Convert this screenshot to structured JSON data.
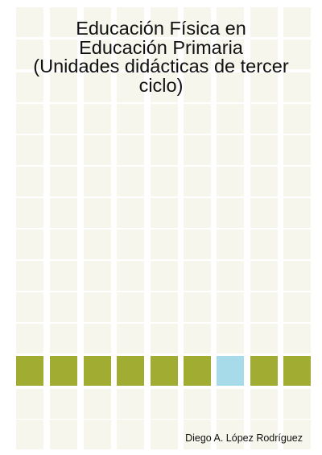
{
  "book": {
    "title_lines": [
      "Educación Física en",
      "Educación Primaria",
      "(Unidades didácticas de tercer",
      "ciclo)"
    ],
    "author": "Diego A. López Rodríguez"
  },
  "colors": {
    "background": "#ffffff",
    "tile": "#f6f6ec",
    "band_green": "#a1ac32",
    "band_blue": "#a7dbea",
    "text": "#111111"
  }
}
